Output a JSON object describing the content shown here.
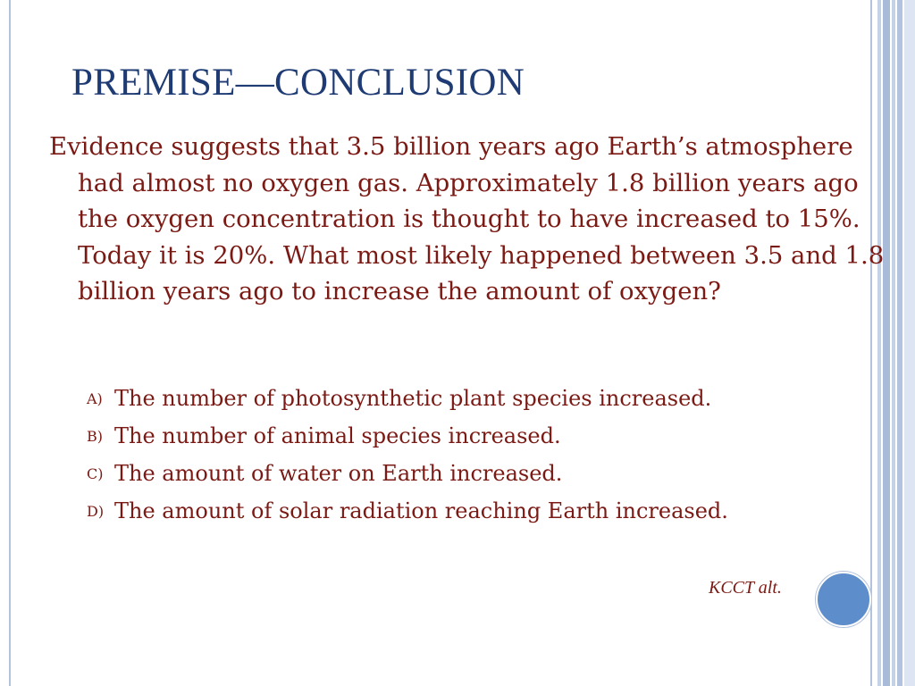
{
  "slide": {
    "title": "PREMISE—CONCLUSION",
    "question": "Evidence suggests that 3.5 billion years ago Earth’s atmosphere had almost no oxygen gas. Approximately 1.8 billion years ago the oxygen concentration is thought to have increased to 15%. Today it is 20%.  What most likely happened between 3.5 and 1.8 billion years ago to increase the amount of oxygen?",
    "options": [
      {
        "letter": "A)",
        "text": "The number of photosynthetic plant species increased."
      },
      {
        "letter": "B)",
        "text": "The number of animal species increased."
      },
      {
        "letter": "C)",
        "text": "The amount of water on Earth increased."
      },
      {
        "letter": "D)",
        "text": "The amount of solar radiation reaching Earth increased."
      }
    ],
    "credit": "KCCT alt."
  },
  "colors": {
    "title": "#1f3b73",
    "body_text": "#7b1a14",
    "accent_circle": "#5d8dca",
    "border": "#b3c3dc"
  }
}
